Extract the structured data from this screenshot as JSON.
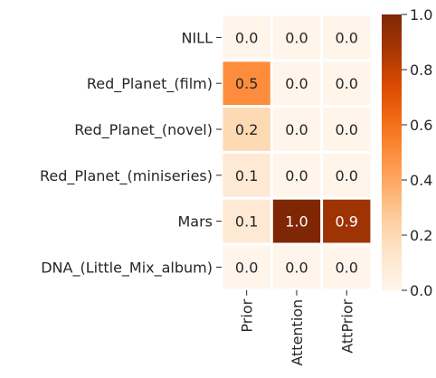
{
  "chart_data": {
    "type": "heatmap",
    "rows": [
      "NILL",
      "Red_Planet_(film)",
      "Red_Planet_(novel)",
      "Red_Planet_(miniseries)",
      "Mars",
      "DNA_(Little_Mix_album)"
    ],
    "columns": [
      "Prior",
      "Attention",
      "AttPrior"
    ],
    "values": [
      [
        0.0,
        0.0,
        0.0
      ],
      [
        0.5,
        0.0,
        0.0
      ],
      [
        0.2,
        0.0,
        0.0
      ],
      [
        0.1,
        0.0,
        0.0
      ],
      [
        0.1,
        1.0,
        0.9
      ],
      [
        0.0,
        0.0,
        0.0
      ]
    ],
    "value_labels": [
      [
        "0.0",
        "0.0",
        "0.0"
      ],
      [
        "0.5",
        "0.0",
        "0.0"
      ],
      [
        "0.2",
        "0.0",
        "0.0"
      ],
      [
        "0.1",
        "0.0",
        "0.0"
      ],
      [
        "0.1",
        "1.0",
        "0.9"
      ],
      [
        "0.0",
        "0.0",
        "0.0"
      ]
    ],
    "colormap": "Oranges",
    "colorbar": {
      "range": [
        0.0,
        1.0
      ],
      "ticks": [
        0.0,
        0.2,
        0.4,
        0.6,
        0.8,
        1.0
      ],
      "tick_labels": [
        "0.0",
        "0.2",
        "0.4",
        "0.6",
        "0.8",
        "1.0"
      ],
      "placement": "right"
    },
    "cell_gap_color": "#ffffff"
  }
}
